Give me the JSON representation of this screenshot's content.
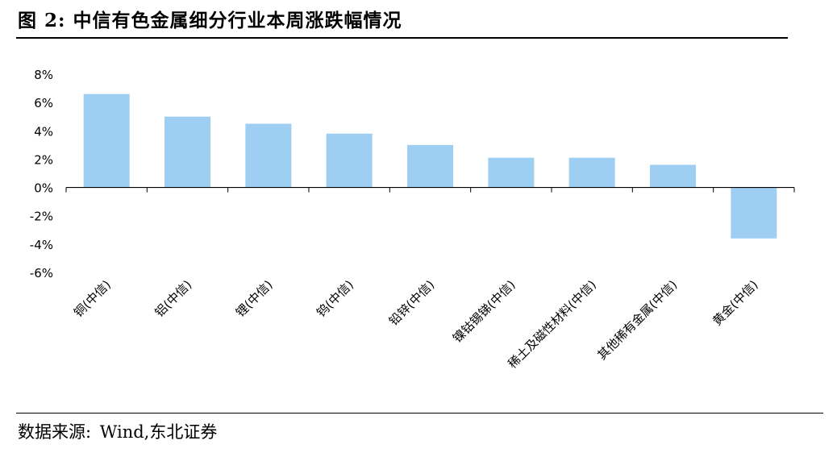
{
  "title": "图 2:  中信有色金属细分行业本周涨跌幅情况",
  "source": {
    "label": "数据来源:",
    "text": "Wind,东北证券"
  },
  "chart_data": {
    "type": "bar",
    "categories": [
      "铜(中信)",
      "铝(中信)",
      "锂(中信)",
      "钨(中信)",
      "铅锌(中信)",
      "镍钴锡锑(中信)",
      "稀土及磁性材料(中信)",
      "其他稀有金属(中信)",
      "黄金(中信)"
    ],
    "values": [
      6.6,
      5.0,
      4.5,
      3.8,
      3.0,
      2.1,
      2.1,
      1.6,
      -3.6
    ],
    "yticks": [
      "8%",
      "6%",
      "4%",
      "2%",
      "0%",
      "-2%",
      "-4%",
      "-6%"
    ],
    "ylim": [
      -6,
      8
    ],
    "bar_color": "#9ecff2",
    "xlabel": "",
    "ylabel": "",
    "grid": false,
    "legend": "none"
  }
}
